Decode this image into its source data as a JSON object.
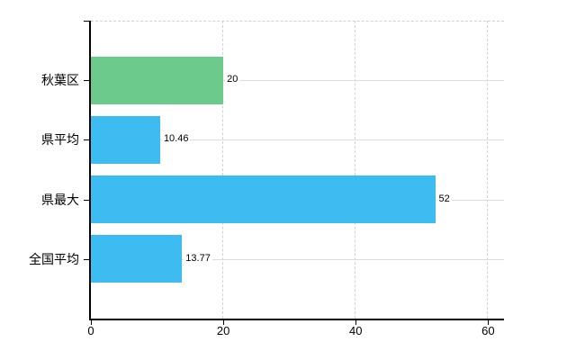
{
  "chart_data": {
    "type": "bar",
    "orientation": "horizontal",
    "title": "",
    "xlabel": "",
    "ylabel": "",
    "categories": [
      "秋葉区",
      "県平均",
      "県最大",
      "全国平均"
    ],
    "values": [
      20,
      10.46,
      52,
      13.77
    ],
    "value_labels": [
      "20",
      "10.46",
      "52",
      "13.77"
    ],
    "bar_colors": [
      "#6cca8c",
      "#3dbcf2",
      "#3dbcf2",
      "#3dbcf2"
    ],
    "xlim": [
      0,
      62.4
    ],
    "xticks": [
      0,
      20,
      40,
      60
    ],
    "xtick_labels": [
      "0",
      "20",
      "40",
      "60"
    ],
    "grid": {
      "vertical_style": "dashed",
      "horizontal_style": "solid",
      "color": "#d6d6d6",
      "top_border": "dashed"
    },
    "legend": "none",
    "axis_color": "#000000",
    "background": "#ffffff"
  }
}
